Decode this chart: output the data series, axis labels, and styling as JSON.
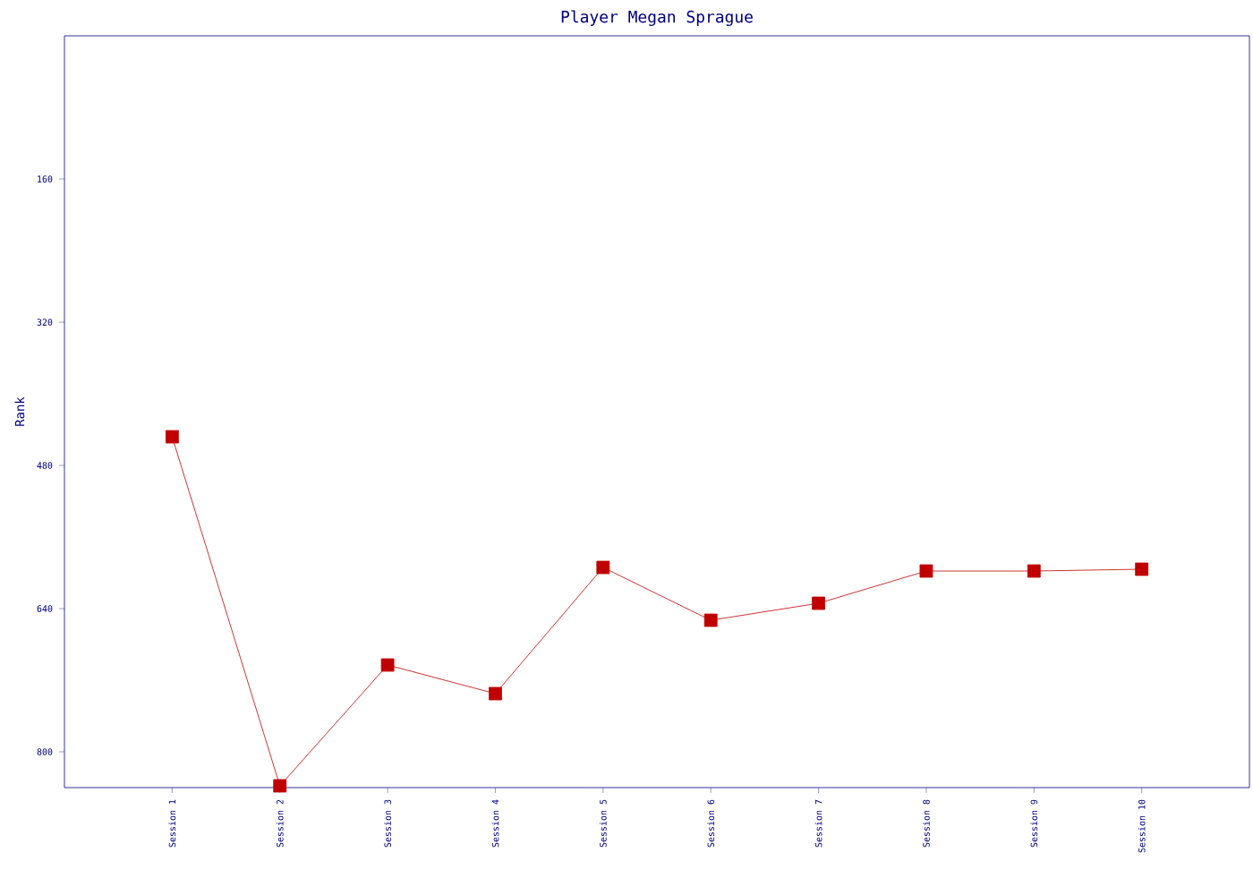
{
  "chart_data": {
    "type": "line",
    "title": "Player Megan Sprague",
    "ylabel": "Rank",
    "categories": [
      "Session 1",
      "Session 2",
      "Session 3",
      "Session 4",
      "Session 5",
      "Session 6",
      "Session 7",
      "Session 8",
      "Session 9",
      "Session 10"
    ],
    "series": [
      {
        "color": "#c00000",
        "values": [
          448,
          838,
          703,
          735,
          594,
          653,
          634,
          598,
          598,
          596
        ]
      }
    ],
    "ylim": [
      840,
      0
    ],
    "yticks": [
      160,
      320,
      480,
      640,
      800
    ],
    "grid": false,
    "marker": "square",
    "line_style": "solid"
  }
}
